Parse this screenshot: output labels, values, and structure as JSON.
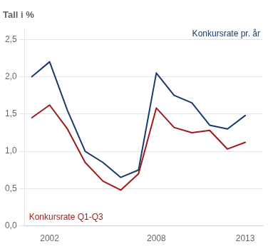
{
  "chart_data": {
    "type": "line",
    "title": "Tall i %",
    "x": [
      2001,
      2002,
      2003,
      2004,
      2005,
      2006,
      2007,
      2008,
      2009,
      2010,
      2011,
      2012,
      2013
    ],
    "series": [
      {
        "name": "Konkursrate pr. år",
        "color": "#1a3a6b",
        "values": [
          2.0,
          2.2,
          1.55,
          1.0,
          0.85,
          0.65,
          0.75,
          2.05,
          1.75,
          1.65,
          1.35,
          1.3,
          1.48
        ]
      },
      {
        "name": "Konkursrate Q1-Q3",
        "color": "#9e1a1a",
        "values": [
          1.45,
          1.62,
          1.3,
          0.85,
          0.6,
          0.48,
          0.7,
          1.58,
          1.32,
          1.25,
          1.28,
          1.03,
          1.12
        ]
      }
    ],
    "xlim": [
      2000.6,
      2014.0
    ],
    "xticks": [
      2002,
      2008,
      2013
    ],
    "ylim": [
      0.0,
      2.65
    ],
    "yticks": [
      {
        "value": 0.0,
        "label": "0,0"
      },
      {
        "value": 0.5,
        "label": "0,5"
      },
      {
        "value": 1.0,
        "label": "1,0"
      },
      {
        "value": 1.5,
        "label": "1,5"
      },
      {
        "value": 2.0,
        "label": "2,0"
      },
      {
        "value": 2.5,
        "label": "2,5"
      }
    ],
    "grid": true
  }
}
